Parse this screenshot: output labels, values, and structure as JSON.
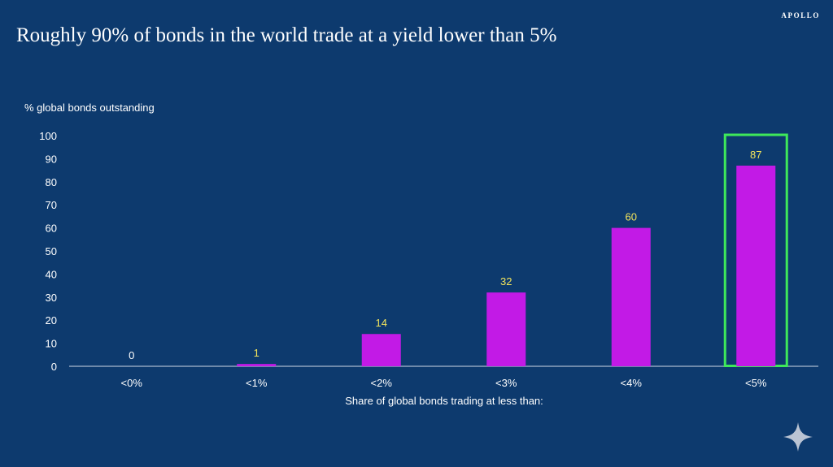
{
  "brand": "APOLLO",
  "title": "Roughly 90% of bonds in the world trade at a yield lower than 5%",
  "chart_data": {
    "type": "bar",
    "title": "Roughly 90% of bonds in the world trade at a yield lower than 5%",
    "ylabel": "% global bonds outstanding",
    "xlabel": "Share of global bonds trading at less than:",
    "categories": [
      "<0%",
      "<1%",
      "<2%",
      "<3%",
      "<4%",
      "<5%"
    ],
    "values": [
      0,
      1,
      14,
      32,
      60,
      87
    ],
    "data_labels": [
      "0",
      "1",
      "14",
      "32",
      "60",
      "87"
    ],
    "ylim": [
      0,
      100
    ],
    "yticks": [
      0,
      10,
      20,
      30,
      40,
      50,
      60,
      70,
      80,
      90,
      100
    ],
    "grid": false,
    "highlight_category": "<5%",
    "colors": {
      "background": "#0d3a6e",
      "bar": "#c21ae6",
      "highlight_box": "#3ee85a",
      "data_label_zero": "#ffffff",
      "data_label": "#f2e45c",
      "axis": "#ffffff"
    }
  }
}
